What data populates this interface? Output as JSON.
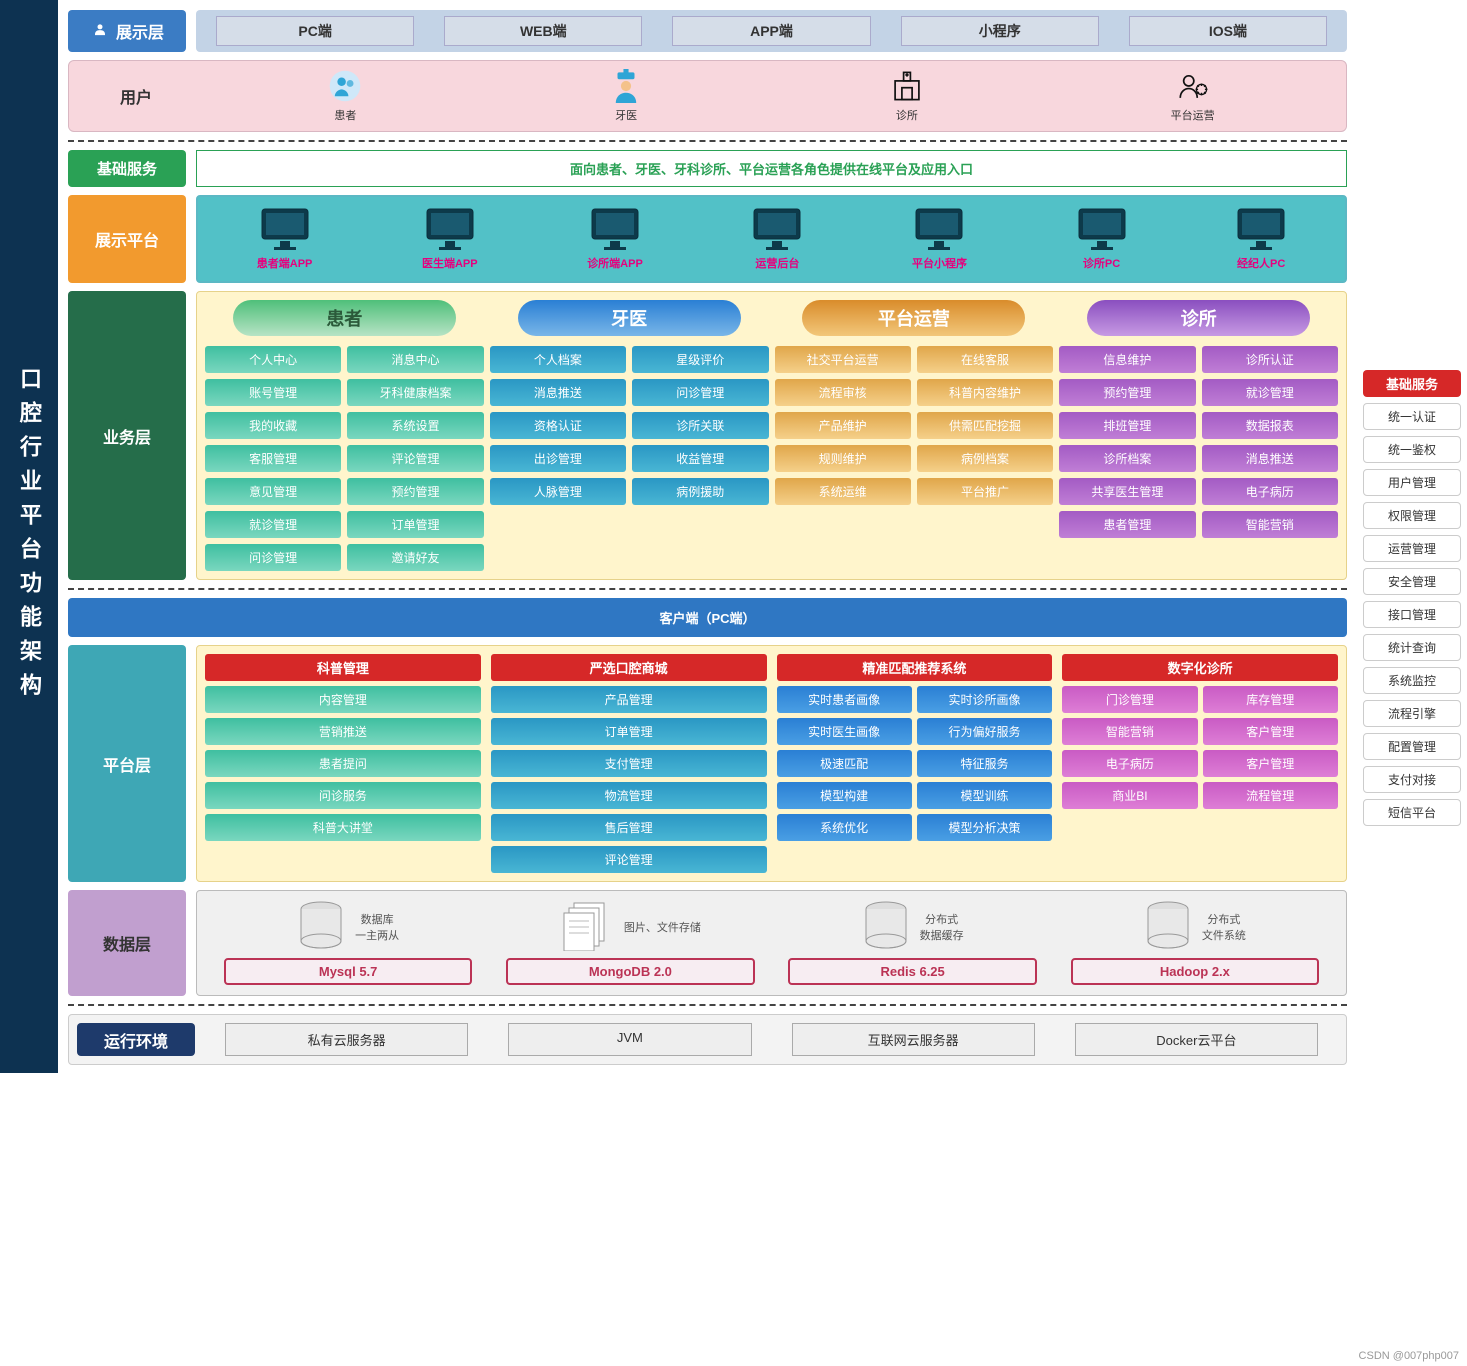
{
  "left_title": "口腔行业平台功能架构",
  "watermark": "CSDN @007php007",
  "row1": {
    "label": "展示层",
    "label_bg": "#3b7cc4",
    "body_bg": "#c3d3e6",
    "tabs": [
      "PC端",
      "WEB端",
      "APP端",
      "小程序",
      "IOS端"
    ]
  },
  "row2": {
    "label": "用户",
    "bg": "#f8d7dd",
    "users": [
      {
        "name": "患者",
        "icon": "people",
        "color": "#2fa5d6"
      },
      {
        "name": "牙医",
        "icon": "doctor",
        "color": "#2fa5d6"
      },
      {
        "name": "诊所",
        "icon": "clinic",
        "color": "#111"
      },
      {
        "name": "平台运营",
        "icon": "ops",
        "color": "#111"
      }
    ]
  },
  "row3": {
    "label": "基础服务",
    "label_bg": "#2aa155",
    "text": "面向患者、牙医、牙科诊所、平台运营各角色提供在线平台及应用入口"
  },
  "row4": {
    "label": "展示平台",
    "label_bg": "#f29a2e",
    "body_bg": "#52c1c7",
    "platforms": [
      "患者端APP",
      "医生端APP",
      "诊所端APP",
      "运营后台",
      "平台小程序",
      "诊所PC",
      "经纪人PC"
    ],
    "text_color": "#e6007e"
  },
  "row5": {
    "label": "业务层",
    "label_bg": "#256d4a",
    "cols": [
      {
        "title": "患者",
        "title_bg": "linear-gradient(180deg,#4fbf7a,#b7e3c5)",
        "title_color": "#2b5a3a",
        "item_bg": "linear-gradient(180deg,#3fbfa0,#7ad7bf)",
        "items": [
          "个人中心",
          "消息中心",
          "账号管理",
          "牙科健康档案",
          "我的收藏",
          "系统设置",
          "客服管理",
          "评论管理",
          "意见管理",
          "预约管理",
          "就诊管理",
          "订单管理",
          "问诊管理",
          "邀请好友"
        ]
      },
      {
        "title": "牙医",
        "title_bg": "linear-gradient(180deg,#2a7fd4,#79b6e8)",
        "title_color": "#fff",
        "item_bg": "linear-gradient(180deg,#2a97c4,#49b6d4)",
        "items": [
          "个人档案",
          "星级评价",
          "消息推送",
          "问诊管理",
          "资格认证",
          "诊所关联",
          "出诊管理",
          "收益管理",
          "人脉管理",
          "病例援助"
        ]
      },
      {
        "title": "平台运营",
        "title_bg": "linear-gradient(180deg,#d98c2b,#f2c77a)",
        "title_color": "#fff",
        "item_bg": "linear-gradient(180deg,#e0a64a,#f5d08a)",
        "items": [
          "社交平台运营",
          "在线客服",
          "流程审核",
          "科普内容维护",
          "产品维护",
          "供需匹配挖掘",
          "规则维护",
          "病例档案",
          "系统运维",
          "平台推广"
        ]
      },
      {
        "title": "诊所",
        "title_bg": "linear-gradient(180deg,#8a4fbf,#c79ae3)",
        "title_color": "#fff",
        "item_bg": "linear-gradient(180deg,#a35bc4,#c07ed6)",
        "items": [
          "信息维护",
          "诊所认证",
          "预约管理",
          "就诊管理",
          "排班管理",
          "数据报表",
          "诊所档案",
          "消息推送",
          "共享医生管理",
          "电子病历",
          "患者管理",
          "智能营销"
        ]
      }
    ]
  },
  "row6": {
    "text": "客户端（PC端）",
    "bg": "#2f77c3"
  },
  "row7": {
    "label": "平台层",
    "label_bg": "#3ea7b5",
    "cols": [
      {
        "title": "科普管理",
        "item_bg": "linear-gradient(180deg,#3fbfa0,#7ad7bf)",
        "single": true,
        "items": [
          "内容管理",
          "营销推送",
          "患者提问",
          "问诊服务",
          "科普大讲堂"
        ]
      },
      {
        "title": "严选口腔商城",
        "item_bg": "linear-gradient(180deg,#2a97c4,#49b6d4)",
        "single": true,
        "items": [
          "产品管理",
          "订单管理",
          "支付管理",
          "物流管理",
          "售后管理",
          "评论管理"
        ]
      },
      {
        "title": "精准匹配推荐系统",
        "item_bg": "linear-gradient(180deg,#2a7fd4,#4a9fe4)",
        "single": false,
        "items": [
          "实时患者画像",
          "实时诊所画像",
          "实时医生画像",
          "行为偏好服务",
          "极速匹配",
          "特征服务",
          "模型构建",
          "模型训练",
          "系统优化",
          "模型分析决策"
        ]
      },
      {
        "title": "数字化诊所",
        "item_bg": "linear-gradient(180deg,#c95bc4,#de7ed6)",
        "single": false,
        "items": [
          "门诊管理",
          "库存管理",
          "智能营销",
          "客户管理",
          "电子病历",
          "客户管理",
          "商业BI",
          "流程管理"
        ]
      }
    ]
  },
  "row8": {
    "label": "数据层",
    "label_bg": "#c19fcf",
    "items": [
      {
        "desc": "数据库\n一主两从",
        "name": "Mysql 5.7",
        "icon": "cylinder"
      },
      {
        "desc": "图片、文件存储",
        "name": "MongoDB  2.0",
        "icon": "files"
      },
      {
        "desc": "分布式\n数据缓存",
        "name": "Redis 6.25",
        "icon": "cylinder"
      },
      {
        "desc": "分布式\n文件系统",
        "name": "Hadoop 2.x",
        "icon": "cylinder"
      }
    ],
    "name_border": "#b35"
  },
  "row9": {
    "label": "运行环境",
    "label_bg": "#1e3a6b",
    "items": [
      "私有云服务器",
      "JVM",
      "互联网云服务器",
      "Docker云平台"
    ]
  },
  "sidebar": {
    "head": "基础服务",
    "head_bg": "#d62828",
    "items": [
      "统一认证",
      "统一鉴权",
      "用户管理",
      "权限管理",
      "运营管理",
      "安全管理",
      "接口管理",
      "统计查询",
      "系统监控",
      "流程引擎",
      "配置管理",
      "支付对接",
      "短信平台"
    ]
  }
}
